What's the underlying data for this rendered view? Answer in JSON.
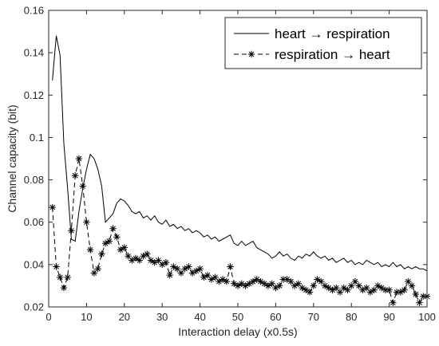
{
  "chart_data": {
    "type": "line",
    "xlabel": "Interaction delay (x0.5s)",
    "ylabel": "Channel capacity (bit)",
    "xlim": [
      0,
      100
    ],
    "ylim": [
      0.02,
      0.16
    ],
    "xticks": [
      "0",
      "10",
      "20",
      "30",
      "40",
      "50",
      "60",
      "70",
      "80",
      "90",
      "100"
    ],
    "yticks": [
      "0.02",
      "0.04",
      "0.06",
      "0.08",
      "0.1",
      "0.12",
      "0.14",
      "0.16"
    ],
    "legend_position": "top-right",
    "grid": false,
    "series": [
      {
        "name": "heart → respiration",
        "style": "solid",
        "color": "#000000",
        "x": [
          1,
          2,
          3,
          4,
          5,
          6,
          7,
          8,
          9,
          10,
          11,
          12,
          13,
          14,
          15,
          16,
          17,
          18,
          19,
          20,
          21,
          22,
          23,
          24,
          25,
          26,
          27,
          28,
          29,
          30,
          31,
          32,
          33,
          34,
          35,
          36,
          37,
          38,
          39,
          40,
          41,
          42,
          43,
          44,
          45,
          46,
          47,
          48,
          49,
          50,
          51,
          52,
          53,
          54,
          55,
          56,
          57,
          58,
          59,
          60,
          61,
          62,
          63,
          64,
          65,
          66,
          67,
          68,
          69,
          70,
          71,
          72,
          73,
          74,
          75,
          76,
          77,
          78,
          79,
          80,
          81,
          82,
          83,
          84,
          85,
          86,
          87,
          88,
          89,
          90,
          91,
          92,
          93,
          94,
          95,
          96,
          97,
          98,
          99,
          100
        ],
        "y": [
          0.127,
          0.148,
          0.139,
          0.097,
          0.076,
          0.052,
          0.051,
          0.065,
          0.076,
          0.085,
          0.092,
          0.09,
          0.085,
          0.077,
          0.06,
          0.062,
          0.064,
          0.069,
          0.071,
          0.07,
          0.068,
          0.065,
          0.064,
          0.065,
          0.062,
          0.063,
          0.061,
          0.063,
          0.06,
          0.059,
          0.061,
          0.058,
          0.059,
          0.057,
          0.058,
          0.056,
          0.057,
          0.055,
          0.056,
          0.055,
          0.053,
          0.054,
          0.052,
          0.053,
          0.051,
          0.052,
          0.053,
          0.054,
          0.05,
          0.049,
          0.051,
          0.049,
          0.05,
          0.051,
          0.048,
          0.047,
          0.046,
          0.045,
          0.043,
          0.044,
          0.046,
          0.044,
          0.045,
          0.043,
          0.042,
          0.044,
          0.043,
          0.045,
          0.044,
          0.046,
          0.044,
          0.043,
          0.044,
          0.042,
          0.043,
          0.041,
          0.042,
          0.043,
          0.041,
          0.042,
          0.04,
          0.041,
          0.04,
          0.042,
          0.041,
          0.04,
          0.041,
          0.039,
          0.04,
          0.039,
          0.041,
          0.039,
          0.04,
          0.038,
          0.039,
          0.038,
          0.039,
          0.038,
          0.038,
          0.037
        ]
      },
      {
        "name": "respiration → heart",
        "style": "dashed-star",
        "color": "#000000",
        "x": [
          1,
          2,
          3,
          4,
          5,
          6,
          7,
          8,
          9,
          10,
          11,
          12,
          13,
          14,
          15,
          16,
          17,
          18,
          19,
          20,
          21,
          22,
          23,
          24,
          25,
          26,
          27,
          28,
          29,
          30,
          31,
          32,
          33,
          34,
          35,
          36,
          37,
          38,
          39,
          40,
          41,
          42,
          43,
          44,
          45,
          46,
          47,
          48,
          49,
          50,
          51,
          52,
          53,
          54,
          55,
          56,
          57,
          58,
          59,
          60,
          61,
          62,
          63,
          64,
          65,
          66,
          67,
          68,
          69,
          70,
          71,
          72,
          73,
          74,
          75,
          76,
          77,
          78,
          79,
          80,
          81,
          82,
          83,
          84,
          85,
          86,
          87,
          88,
          89,
          90,
          91,
          92,
          93,
          94,
          95,
          96,
          97,
          98,
          99,
          100
        ],
        "y": [
          0.067,
          0.039,
          0.034,
          0.029,
          0.034,
          0.056,
          0.082,
          0.09,
          0.077,
          0.06,
          0.047,
          0.036,
          0.038,
          0.045,
          0.05,
          0.051,
          0.057,
          0.053,
          0.047,
          0.048,
          0.044,
          0.042,
          0.043,
          0.042,
          0.044,
          0.045,
          0.042,
          0.041,
          0.042,
          0.04,
          0.041,
          0.035,
          0.039,
          0.038,
          0.036,
          0.038,
          0.039,
          0.036,
          0.037,
          0.038,
          0.034,
          0.035,
          0.033,
          0.034,
          0.032,
          0.033,
          0.032,
          0.039,
          0.031,
          0.03,
          0.031,
          0.03,
          0.031,
          0.032,
          0.033,
          0.032,
          0.031,
          0.03,
          0.031,
          0.029,
          0.03,
          0.033,
          0.033,
          0.032,
          0.03,
          0.031,
          0.029,
          0.028,
          0.027,
          0.03,
          0.033,
          0.032,
          0.03,
          0.029,
          0.028,
          0.029,
          0.027,
          0.029,
          0.028,
          0.03,
          0.032,
          0.03,
          0.028,
          0.029,
          0.027,
          0.028,
          0.03,
          0.029,
          0.028,
          0.028,
          0.022,
          0.027,
          0.027,
          0.028,
          0.032,
          0.03,
          0.026,
          0.022,
          0.025,
          0.025
        ]
      }
    ]
  }
}
